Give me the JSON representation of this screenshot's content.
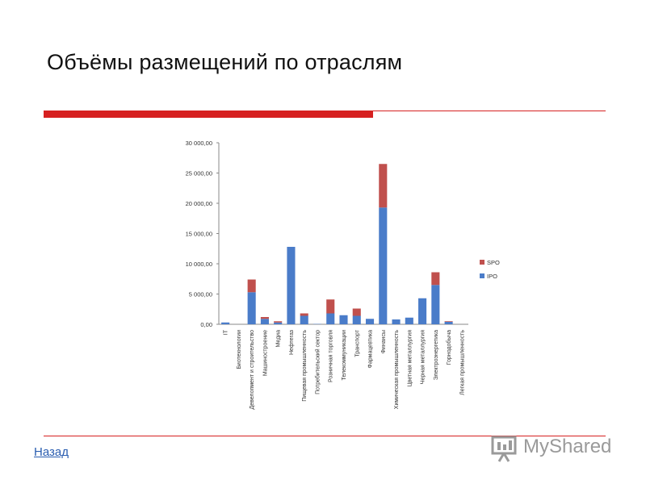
{
  "slide": {
    "title": "Объёмы размещений по отраслям",
    "back_label": "Назад",
    "watermark": "MyShared",
    "accent_color": "#d62020"
  },
  "chart_data": {
    "type": "bar",
    "stacked": true,
    "categories": [
      "IT",
      "Биотехнологии",
      "Девелопмент и строительство",
      "Машиностроение",
      "Медиа",
      "Нефтегаз",
      "Пищевая промышленность",
      "Потребительский сектор",
      "Розничная торговля",
      "Телекоммуникации",
      "Транспорт",
      "Фармацевтика",
      "Финансы",
      "Химическая промышленность",
      "Цветная металлургия",
      "Черная металлургия",
      "Электроэнергетика",
      "Горнодобыча",
      "Легкая промышленность"
    ],
    "series": [
      {
        "name": "IPO",
        "color": "#4a7cc9",
        "values": [
          300,
          0,
          5300,
          900,
          300,
          12800,
          1400,
          50,
          1800,
          1500,
          1400,
          900,
          19300,
          800,
          1100,
          4300,
          6500,
          400,
          0
        ]
      },
      {
        "name": "SPO",
        "color": "#c0504d",
        "values": [
          0,
          0,
          2100,
          300,
          200,
          0,
          400,
          0,
          2300,
          0,
          1200,
          0,
          7200,
          0,
          0,
          0,
          2100,
          100,
          0
        ]
      }
    ],
    "yticks": [
      "0,00",
      "5 000,00",
      "10 000,00",
      "15 000,00",
      "20 000,00",
      "25 000,00",
      "30 000,00"
    ],
    "ylim": [
      0,
      30000
    ],
    "legend": [
      "SPO",
      "IPO"
    ],
    "legend_position": "right",
    "grid": false
  }
}
